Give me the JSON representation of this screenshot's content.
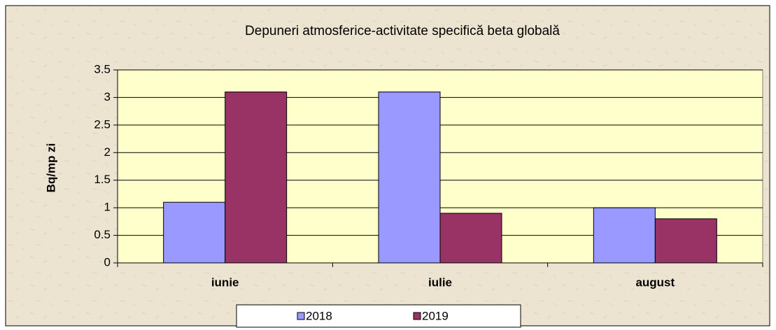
{
  "chart_data": {
    "type": "bar",
    "title": "Depuneri atmosferice-activitate specifică beta globală",
    "y_label": "Bq/mp zi",
    "categories": [
      "iunie",
      "iulie",
      "august"
    ],
    "series": [
      {
        "name": "2018",
        "color": "#9999ff",
        "values": [
          1.1,
          3.1,
          1.0
        ]
      },
      {
        "name": "2019",
        "color": "#993366",
        "values": [
          3.1,
          0.9,
          0.8
        ]
      }
    ],
    "ylim": [
      0,
      3.5
    ],
    "yticks": [
      0,
      0.5,
      1,
      1.5,
      2,
      2.5,
      3,
      3.5
    ],
    "grid": true,
    "legend": "bottom"
  }
}
